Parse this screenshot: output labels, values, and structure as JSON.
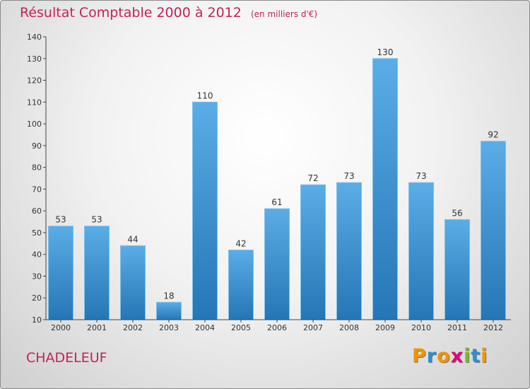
{
  "title": "Résultat Comptable 2000 à 2012",
  "unit": "(en milliers d'€)",
  "commune": "CHADELEUF",
  "logo": {
    "text": "Proxiti",
    "letters": [
      "P",
      "r",
      "o",
      "x",
      "i",
      "t",
      "i"
    ],
    "colors": [
      "#f29400",
      "#2a8fd6",
      "#f29400",
      "#e2007a",
      "#79b928",
      "#2a8fd6",
      "#f29400"
    ]
  },
  "colors": {
    "title": "#c22357",
    "bar_light": "#5aade6",
    "bar_dark": "#2576b5",
    "axis": "#444444"
  },
  "chart_data": {
    "type": "bar",
    "title": "Résultat Comptable 2000 à 2012",
    "xlabel": "",
    "ylabel": "",
    "ylim": [
      10,
      140
    ],
    "yticks": [
      10,
      20,
      30,
      40,
      50,
      60,
      70,
      80,
      90,
      100,
      110,
      120,
      130,
      140
    ],
    "categories": [
      "2000",
      "2001",
      "2002",
      "2003",
      "2004",
      "2005",
      "2006",
      "2007",
      "2008",
      "2009",
      "2010",
      "2011",
      "2012"
    ],
    "values": [
      53,
      53,
      44,
      18,
      110,
      42,
      61,
      72,
      73,
      130,
      73,
      56,
      92
    ],
    "grid": false,
    "legend": "none"
  }
}
